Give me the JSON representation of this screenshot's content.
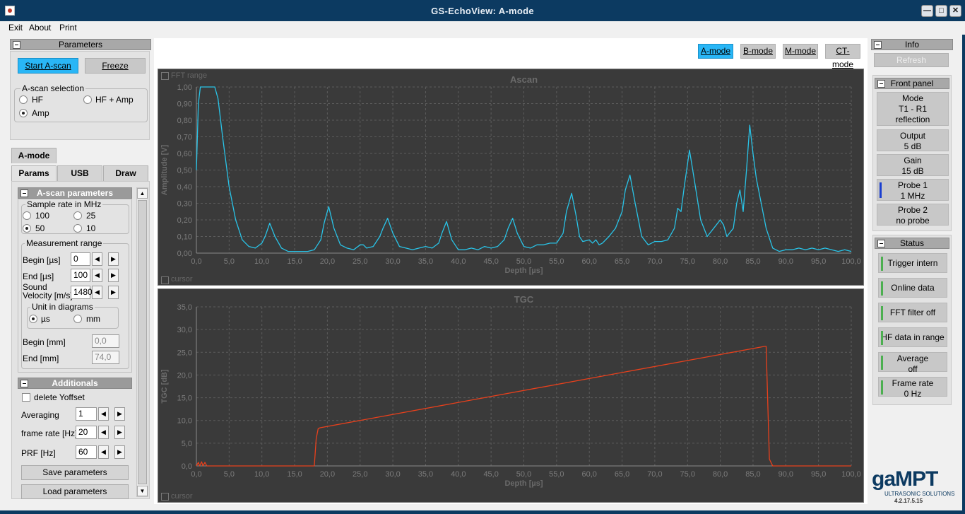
{
  "window": {
    "title": "GS-EchoView: A-mode"
  },
  "menu": {
    "exit": "Exit",
    "about": "About",
    "print": "Print"
  },
  "parameters": {
    "header": "Parameters",
    "start_label": "Start A-scan",
    "freeze_label": "Freeze",
    "selection_legend": "A-scan selection",
    "options": {
      "hf": "HF",
      "hf_amp": "HF + Amp",
      "amp": "Amp"
    },
    "selected": "Amp"
  },
  "tabs": {
    "amode": "A-mode",
    "params": "Params",
    "usb": "USB",
    "draw": "Draw"
  },
  "ascan_params": {
    "header": "A-scan parameters",
    "sample_rate_legend": "Sample rate  in MHz",
    "sample_rates": [
      "100",
      "25",
      "50",
      "10"
    ],
    "selected_rate": "50",
    "measurement_legend": "Measurement range",
    "begin_label": "Begin [µs]",
    "begin_value": "0",
    "end_label": "End [µs]",
    "end_value": "100",
    "sound_label_1": "Sound",
    "sound_label_2": "Velocity [m/s]",
    "sound_value": "1480",
    "unit_legend": "Unit in diagrams",
    "unit_us": "µs",
    "unit_mm": "mm",
    "selected_unit": "µs",
    "begin_mm_label": "Begin [mm]",
    "begin_mm_value": "0,0",
    "end_mm_label": "End [mm]",
    "end_mm_value": "74,0"
  },
  "additionals": {
    "header": "Additionals",
    "delete_yoffset": "delete Yoffset",
    "averaging_label": "Averaging",
    "averaging_value": "1",
    "frame_rate_label": "frame rate [Hz]",
    "frame_rate_value": "20",
    "prf_label": "PRF [Hz]",
    "prf_value": "60",
    "save_label": "Save parameters",
    "load_label": "Load parameters"
  },
  "modes": {
    "a": "A-mode",
    "b": "B-mode",
    "m": "M-mode",
    "ct": "CT-mode",
    "active": "A-mode"
  },
  "ascan_plot": {
    "fft_label": "FFT range",
    "cursor_label": "cursor"
  },
  "tgc_plot": {
    "cursor_label": "cursor"
  },
  "info": {
    "header": "Info",
    "refresh_label": "Refresh",
    "front_panel_header": "Front panel",
    "mode_l1": "Mode",
    "mode_l2": "T1 - R1",
    "mode_l3": "reflection",
    "output_l1": "Output",
    "output_l2": "5 dB",
    "gain_l1": "Gain",
    "gain_l2": "15 dB",
    "probe1_l1": "Probe 1",
    "probe1_l2": "1 MHz",
    "probe2_l1": "Probe 2",
    "probe2_l2": "no probe",
    "status_header": "Status",
    "trigger": "Trigger intern",
    "online": "Online data",
    "fft": "FFT filter off",
    "hf_range": "HF data in range",
    "average_l1": "Average",
    "average_l2": "off",
    "frame_l1": "Frame rate",
    "frame_l2": "0 Hz",
    "status_color": "#4caf50",
    "probe1_color": "#1a3fd0"
  },
  "logo": {
    "brand": "gaMPT",
    "sub": "ULTRASONIC SOLUTIONS",
    "version": "4.2.17.5.15"
  },
  "colors": {
    "ascan_trace": "#29c4e8",
    "tgc_trace": "#e8401c",
    "active_button": "#29b6f6"
  },
  "chart_data": [
    {
      "type": "line",
      "title": "Ascan",
      "xlabel": "Depth [µs]",
      "ylabel": "Amplitude [V]",
      "xlim": [
        0,
        100
      ],
      "ylim": [
        0,
        1
      ],
      "grid": true,
      "x_ticks": [
        "0,0",
        "5,0",
        "10,0",
        "15,0",
        "20,0",
        "25,0",
        "30,0",
        "35,0",
        "40,0",
        "45,0",
        "50,0",
        "55,0",
        "60,0",
        "65,0",
        "70,0",
        "75,0",
        "80,0",
        "85,0",
        "90,0",
        "95,0",
        "100,0"
      ],
      "y_ticks": [
        "0,00",
        "0,10",
        "0,20",
        "0,30",
        "0,40",
        "0,50",
        "0,60",
        "0,70",
        "0,80",
        "0,90",
        "1,00"
      ],
      "series": [
        {
          "x": [
            0,
            0.3,
            0.6,
            1,
            2,
            2.8,
            3.3,
            4,
            5,
            6,
            7,
            8,
            9,
            10,
            10.5,
            11.2,
            12,
            13,
            14,
            15,
            16,
            17,
            18,
            19,
            19.5,
            20.2,
            21,
            22,
            23,
            24,
            25,
            25.5,
            26,
            27,
            28,
            28.5,
            29.2,
            30,
            31,
            32,
            33,
            34,
            35,
            36,
            37,
            37.5,
            38.2,
            39,
            40,
            41,
            42,
            43,
            44,
            45,
            46,
            47,
            47.6,
            48.3,
            49,
            50,
            51,
            52,
            53,
            54,
            55,
            56,
            56.5,
            57.3,
            58,
            58.5,
            59,
            60,
            60.5,
            61,
            61.5,
            62,
            63,
            64,
            65,
            65.5,
            66.2,
            67,
            68,
            69,
            70,
            71,
            72,
            73,
            73.5,
            74,
            74.5,
            75.3,
            76,
            77,
            78,
            79,
            80,
            80.5,
            81,
            82,
            82.5,
            83,
            83.5,
            84,
            84.5,
            85,
            85.5,
            86,
            87,
            88,
            89,
            90,
            91,
            92,
            93,
            94,
            95,
            96,
            97,
            98,
            99,
            100
          ],
          "y": [
            0.5,
            0.9,
            1.0,
            1.0,
            1.0,
            1.0,
            0.93,
            0.7,
            0.4,
            0.2,
            0.08,
            0.04,
            0.03,
            0.06,
            0.1,
            0.18,
            0.1,
            0.03,
            0.01,
            0.01,
            0.01,
            0.01,
            0.02,
            0.08,
            0.18,
            0.28,
            0.15,
            0.05,
            0.03,
            0.02,
            0.05,
            0.05,
            0.03,
            0.04,
            0.1,
            0.15,
            0.21,
            0.12,
            0.04,
            0.03,
            0.02,
            0.03,
            0.04,
            0.03,
            0.06,
            0.12,
            0.19,
            0.08,
            0.02,
            0.02,
            0.03,
            0.02,
            0.04,
            0.03,
            0.04,
            0.08,
            0.15,
            0.21,
            0.12,
            0.04,
            0.03,
            0.05,
            0.05,
            0.06,
            0.06,
            0.12,
            0.25,
            0.36,
            0.22,
            0.1,
            0.07,
            0.08,
            0.06,
            0.08,
            0.05,
            0.06,
            0.1,
            0.15,
            0.25,
            0.38,
            0.47,
            0.3,
            0.1,
            0.05,
            0.07,
            0.07,
            0.08,
            0.15,
            0.27,
            0.25,
            0.4,
            0.62,
            0.45,
            0.2,
            0.1,
            0.15,
            0.2,
            0.17,
            0.1,
            0.15,
            0.3,
            0.38,
            0.25,
            0.5,
            0.77,
            0.6,
            0.45,
            0.35,
            0.15,
            0.03,
            0.01,
            0.02,
            0.02,
            0.03,
            0.02,
            0.03,
            0.02,
            0.03,
            0.02,
            0.01,
            0.02,
            0.01
          ]
        }
      ]
    },
    {
      "type": "line",
      "title": "TGC",
      "xlabel": "Depth [µs]",
      "ylabel": "TGC [dB]",
      "xlim": [
        0,
        100
      ],
      "ylim": [
        0,
        35
      ],
      "grid": true,
      "x_ticks": [
        "0,0",
        "5,0",
        "10,0",
        "15,0",
        "20,0",
        "25,0",
        "30,0",
        "35,0",
        "40,0",
        "45,0",
        "50,0",
        "55,0",
        "60,0",
        "65,0",
        "70,0",
        "75,0",
        "80,0",
        "85,0",
        "90,0",
        "95,0",
        "100,0"
      ],
      "y_ticks": [
        "0,0",
        "5,0",
        "10,0",
        "15,0",
        "20,0",
        "25,0",
        "30,0",
        "35,0"
      ],
      "series": [
        {
          "x": [
            0,
            0.3,
            0.5,
            0.8,
            1.0,
            1.3,
            1.6,
            2,
            5,
            10,
            15,
            18,
            18.3,
            18.6,
            18.9,
            86.8,
            87,
            87.5,
            88,
            90,
            95,
            100
          ],
          "y": [
            0,
            0.8,
            0,
            0.9,
            0,
            0.8,
            0,
            0,
            0,
            0,
            0,
            0,
            6,
            8.2,
            8.4,
            26.3,
            26.3,
            1.5,
            0,
            0,
            0,
            0
          ]
        }
      ]
    }
  ]
}
